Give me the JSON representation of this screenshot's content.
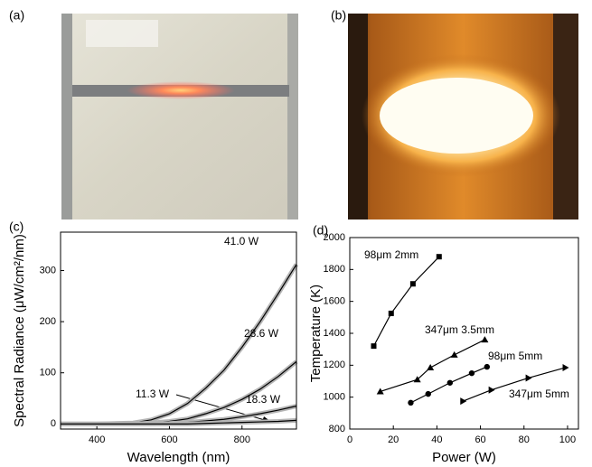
{
  "panel_labels": [
    "(a)",
    "(b)",
    "(c)",
    "(d)"
  ],
  "chart_data": [
    {
      "type": "line",
      "x_label": "Wavelength (nm)",
      "y_label": "Spectral Radiance (μW/cm²/nm)",
      "xlim": [
        300,
        950
      ],
      "ylim": [
        -10,
        375
      ],
      "xticks": [
        400,
        600,
        800
      ],
      "yticks": [
        0,
        100,
        200,
        300
      ],
      "halo_color": "#b5b5b5",
      "x": [
        300,
        400,
        500,
        550,
        600,
        650,
        700,
        750,
        800,
        850,
        900,
        950
      ],
      "series": [
        {
          "name": "41.0 W",
          "color": "#000000",
          "values": [
            0,
            0,
            2,
            8,
            20,
            40,
            70,
            105,
            150,
            200,
            255,
            312
          ]
        },
        {
          "name": "28.6 W",
          "color": "#000000",
          "values": [
            0,
            0,
            0,
            2,
            5,
            10,
            20,
            32,
            48,
            68,
            93,
            122
          ]
        },
        {
          "name": "18.3 W",
          "color": "#000000",
          "values": [
            0,
            0,
            0,
            0,
            1,
            3,
            6,
            9,
            14,
            20,
            27,
            35
          ]
        },
        {
          "name": "11.3 W",
          "color": "#000000",
          "values": [
            0,
            0,
            0,
            0,
            0,
            0,
            1,
            2,
            3,
            4,
            5,
            7
          ]
        }
      ]
    },
    {
      "type": "line",
      "x_label": "Power (W)",
      "y_label": "Temperature (K)",
      "xlim": [
        0,
        105
      ],
      "ylim": [
        800,
        2000
      ],
      "xticks": [
        0,
        20,
        40,
        60,
        80,
        100
      ],
      "yticks": [
        800,
        1000,
        1200,
        1400,
        1600,
        1800,
        2000
      ],
      "series": [
        {
          "name": "98μm 2mm",
          "color": "#000000",
          "marker": "square",
          "x": [
            11,
            19,
            29,
            41
          ],
          "values": [
            1320,
            1525,
            1710,
            1880
          ]
        },
        {
          "name": "347μm 3.5mm",
          "color": "#000000",
          "marker": "triangle-up",
          "x": [
            14,
            31,
            37,
            48,
            62
          ],
          "values": [
            1035,
            1110,
            1185,
            1265,
            1360
          ]
        },
        {
          "name": "98μm 5mm",
          "color": "#000000",
          "marker": "circle",
          "x": [
            28,
            36,
            46,
            56,
            63
          ],
          "values": [
            965,
            1020,
            1090,
            1150,
            1190
          ]
        },
        {
          "name": "347μm 5mm",
          "color": "#000000",
          "marker": "triangle-right",
          "x": [
            52,
            65,
            82,
            99
          ],
          "values": [
            975,
            1045,
            1120,
            1185
          ]
        }
      ]
    }
  ]
}
